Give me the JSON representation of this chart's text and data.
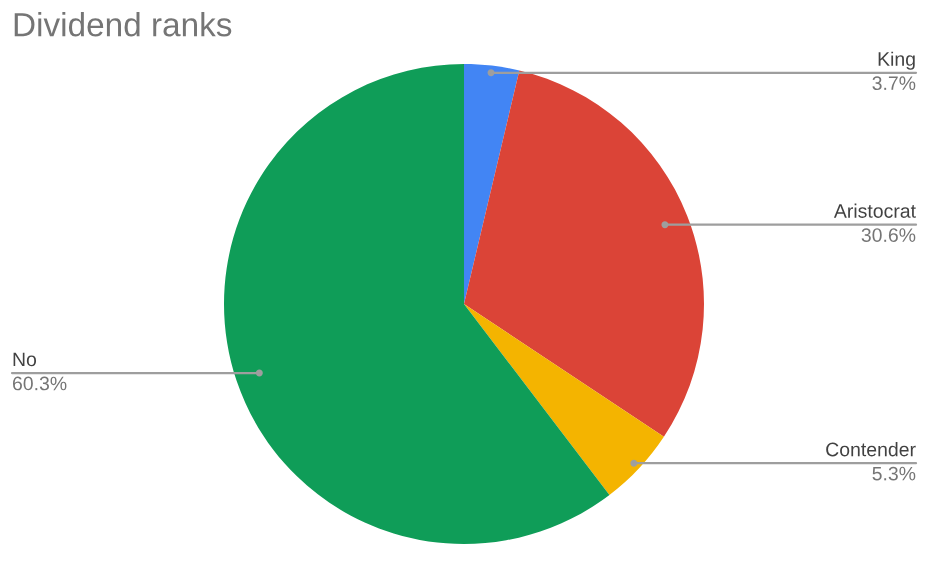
{
  "chart_data": {
    "type": "pie",
    "title": "Dividend ranks",
    "categories": [
      "King",
      "Aristocrat",
      "Contender",
      "No"
    ],
    "values": [
      3.7,
      30.6,
      5.3,
      60.3
    ],
    "value_labels": [
      "3.7%",
      "30.6%",
      "5.3%",
      "60.3%"
    ],
    "colors": [
      "#4285f4",
      "#db4437",
      "#f4b400",
      "#0f9d58"
    ]
  }
}
